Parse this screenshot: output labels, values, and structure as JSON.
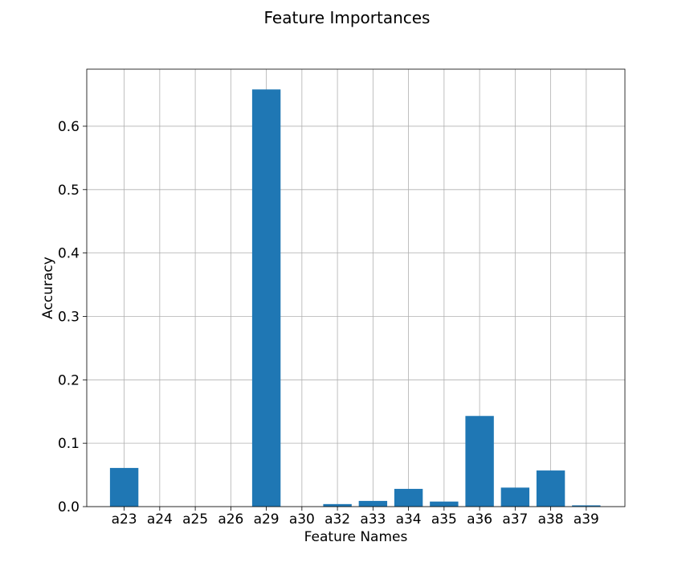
{
  "chart_data": {
    "type": "bar",
    "title": "Feature Importances",
    "xlabel": "Feature Names",
    "ylabel": "Accuracy",
    "categories": [
      "a23",
      "a24",
      "a25",
      "a26",
      "a29",
      "a30",
      "a32",
      "a33",
      "a34",
      "a35",
      "a36",
      "a37",
      "a38",
      "a39"
    ],
    "values": [
      0.061,
      0.0,
      0.0,
      0.0,
      0.658,
      0.0,
      0.004,
      0.009,
      0.028,
      0.008,
      0.143,
      0.03,
      0.057,
      0.002
    ],
    "ylim": [
      0,
      0.69
    ],
    "yticks": [
      "0.0",
      "0.1",
      "0.2",
      "0.3",
      "0.4",
      "0.5",
      "0.6"
    ],
    "grid": true,
    "bar_color": "#1f77b4"
  }
}
